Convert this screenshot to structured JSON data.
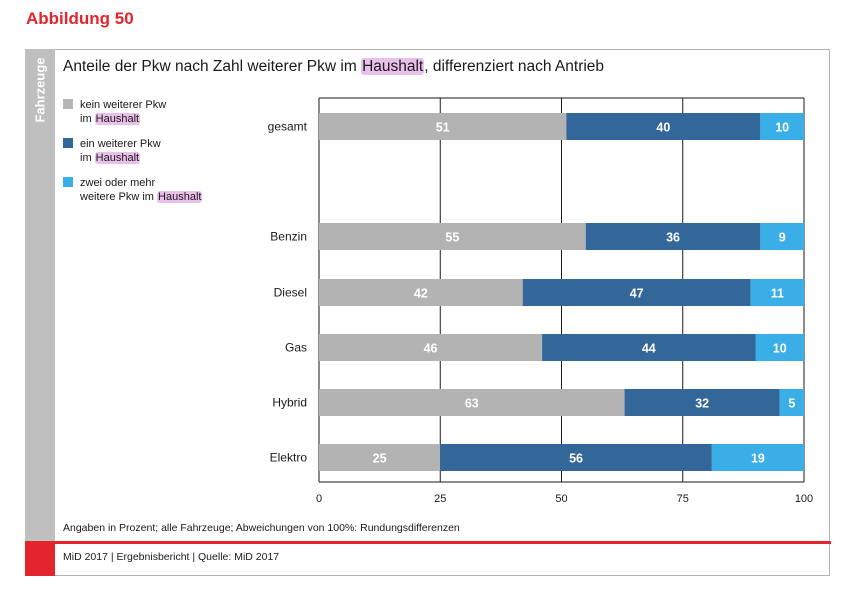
{
  "figure_label": "Abbildung 50",
  "side_label": "Fahrzeuge",
  "title": {
    "before": "Anteile der Pkw nach Zahl weiterer Pkw im ",
    "highlight": "Haushalt",
    "after": ", differenziert nach Antrieb"
  },
  "legend": [
    {
      "line1": "kein weiterer Pkw",
      "line2_pre": "im ",
      "line2_hl": "Haushalt"
    },
    {
      "line1": "ein weiterer Pkw",
      "line2_pre": "im ",
      "line2_hl": "Haushalt"
    },
    {
      "line1": "zwei oder mehr",
      "line2_pre": "weitere Pkw im ",
      "line2_hl": "Haushalt"
    }
  ],
  "colors": {
    "series": [
      "#b3b3b3",
      "#336699",
      "#3aaee6"
    ],
    "accent": "#e3262d",
    "highlight": "#e9c0e9"
  },
  "chart_data": {
    "type": "bar",
    "orientation": "horizontal",
    "stacked": true,
    "categories": [
      "gesamt",
      "Benzin",
      "Diesel",
      "Gas",
      "Hybrid",
      "Elektro"
    ],
    "series": [
      {
        "name": "kein weiterer Pkw im Haushalt",
        "values": [
          51,
          55,
          42,
          46,
          63,
          25
        ]
      },
      {
        "name": "ein weiterer Pkw im Haushalt",
        "values": [
          40,
          36,
          47,
          44,
          32,
          56
        ]
      },
      {
        "name": "zwei oder mehr weitere Pkw im Haushalt",
        "values": [
          10,
          9,
          11,
          10,
          5,
          19
        ]
      }
    ],
    "xlim": [
      0,
      100
    ],
    "xticks": [
      0,
      25,
      50,
      75,
      100
    ],
    "grid": true
  },
  "note": "Angaben in Prozent; alle Fahrzeuge; Abweichungen von 100%: Rundungsdifferenzen",
  "footer": "MiD 2017  |  Ergebnisbericht  |  Quelle: MiD 2017"
}
